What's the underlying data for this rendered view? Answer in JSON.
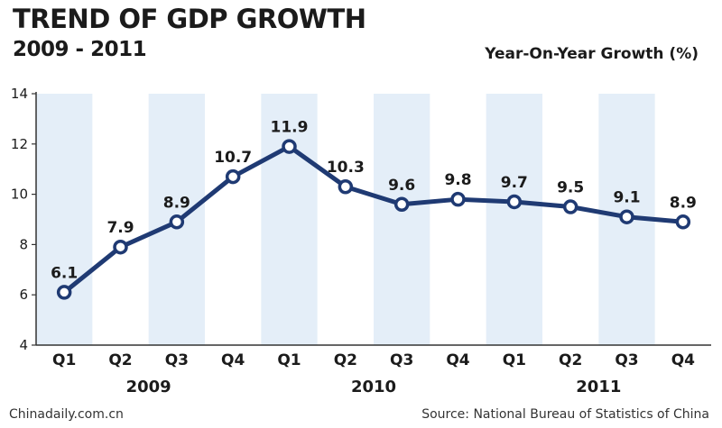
{
  "chart_data": {
    "type": "line",
    "title": "TREND OF GDP GROWTH",
    "subtitle": "2009 - 2011",
    "ylabel": "Year-On-Year Growth (%)",
    "ylim": [
      4,
      14
    ],
    "yticks": [
      "4",
      "6",
      "8",
      "10",
      "12",
      "14"
    ],
    "categories": [
      "Q1",
      "Q2",
      "Q3",
      "Q4",
      "Q1",
      "Q2",
      "Q3",
      "Q4",
      "Q1",
      "Q2",
      "Q3",
      "Q4"
    ],
    "years": [
      {
        "label": "2009",
        "quarters": 4
      },
      {
        "label": "2010",
        "quarters": 4
      },
      {
        "label": "2011",
        "quarters": 4
      }
    ],
    "values": [
      6.1,
      7.9,
      8.9,
      10.7,
      11.9,
      10.3,
      9.6,
      9.8,
      9.7,
      9.5,
      9.1,
      8.9
    ],
    "data_labels": [
      "6.1",
      "7.9",
      "8.9",
      "10.7",
      "11.9",
      "10.3",
      "9.6",
      "9.8",
      "9.7",
      "9.5",
      "9.1",
      "8.9"
    ],
    "grid": false,
    "colors": {
      "line": "#1f3a73",
      "marker_fill": "#ffffff",
      "band": "#e4eef8",
      "axis": "#333333",
      "text": "#1b1b1b"
    }
  },
  "footer": {
    "source_left": "Chinadaily.com.cn",
    "source_right": "Source: National Bureau of Statistics of China"
  }
}
